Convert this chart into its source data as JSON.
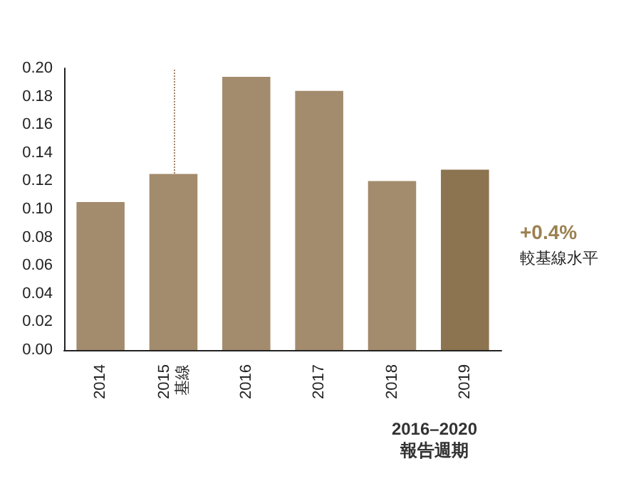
{
  "chart_data": {
    "type": "bar",
    "categories": [
      "2014",
      "2015\n基線",
      "2016",
      "2017",
      "2018",
      "2019"
    ],
    "values": [
      0.105,
      0.125,
      0.194,
      0.184,
      0.12,
      0.128
    ],
    "colors": [
      "#a38b6d",
      "#a38b6d",
      "#a38b6d",
      "#a38b6d",
      "#a38b6d",
      "#8b744f"
    ],
    "ylim": [
      0,
      0.2
    ],
    "yticks": [
      {
        "value": 0,
        "label": "0.00"
      },
      {
        "value": 0.02,
        "label": "0.02"
      },
      {
        "value": 0.04,
        "label": "0.04"
      },
      {
        "value": 0.06,
        "label": "0.06"
      },
      {
        "value": 0.08,
        "label": "0.08"
      },
      {
        "value": 0.1,
        "label": "0.10"
      },
      {
        "value": 0.12,
        "label": "0.12"
      },
      {
        "value": 0.14,
        "label": "0.14"
      },
      {
        "value": 0.16,
        "label": "0.16"
      },
      {
        "value": 0.18,
        "label": "0.18"
      },
      {
        "value": 0.2,
        "label": "0.20"
      }
    ],
    "grid": false,
    "ref_lines": [
      {
        "axis": "x",
        "value": "2015\n基線",
        "color": "#a0836a",
        "line_style": "dotted"
      }
    ],
    "annotations": [
      "+0.4%",
      "較基線水平",
      "2016–2020\n報告週期"
    ]
  }
}
